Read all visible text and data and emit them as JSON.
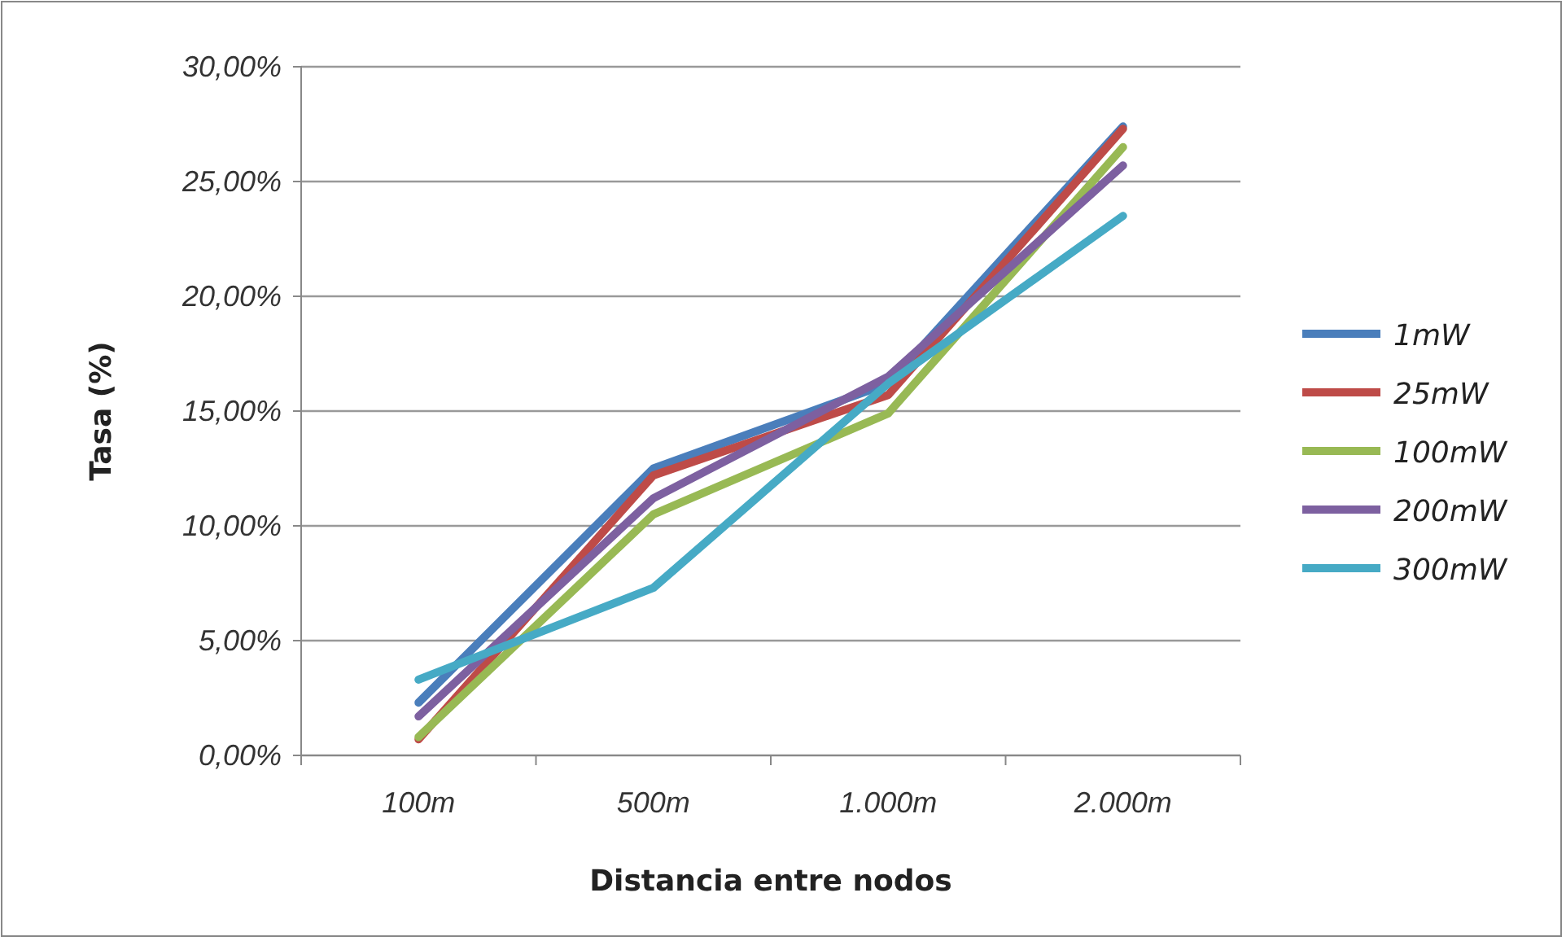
{
  "chart_data": {
    "type": "line",
    "xlabel": "Distancia entre nodos",
    "ylabel": "Tasa (%)",
    "categories": [
      "100m",
      "500m",
      "1.000m",
      "2.000m"
    ],
    "series": [
      {
        "name": "1mW",
        "color": "#4a7ebb",
        "values": [
          2.3,
          12.5,
          16.2,
          27.4
        ]
      },
      {
        "name": "25mW",
        "color": "#be4b48",
        "values": [
          0.7,
          12.2,
          15.7,
          27.3
        ]
      },
      {
        "name": "100mW",
        "color": "#98b954",
        "values": [
          0.8,
          10.5,
          14.9,
          26.5
        ]
      },
      {
        "name": "200mW",
        "color": "#7d60a0",
        "values": [
          1.7,
          11.2,
          16.5,
          25.7
        ]
      },
      {
        "name": "300mW",
        "color": "#46aac5",
        "values": [
          3.3,
          7.3,
          16.2,
          23.5
        ]
      }
    ],
    "ylim": [
      0,
      30
    ],
    "yticks": [
      {
        "value": 0,
        "label": "0,00%"
      },
      {
        "value": 5,
        "label": "5,00%"
      },
      {
        "value": 10,
        "label": "10,00%"
      },
      {
        "value": 15,
        "label": "15,00%"
      },
      {
        "value": 20,
        "label": "20,00%"
      },
      {
        "value": 25,
        "label": "25,00%"
      },
      {
        "value": 30,
        "label": "30,00%"
      }
    ],
    "grid": "y",
    "legend": "right",
    "marker": "none",
    "line_style": "solid"
  }
}
